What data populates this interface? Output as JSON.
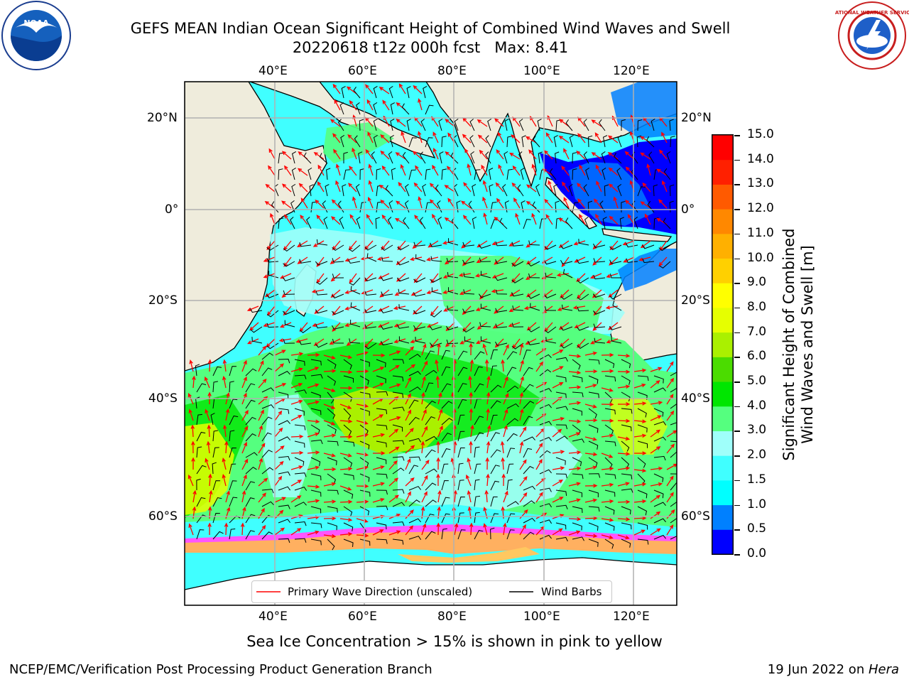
{
  "header": {
    "title_line1": "GEFS MEAN Indian Ocean Significant Height of Combined Wind Waves and Swell",
    "title_line2": "20220618 t12z 000h fcst   Max: 8.41"
  },
  "logos": {
    "left_icon": "noaa-logo",
    "left_text": "NOAA",
    "right_icon": "nws-logo",
    "right_text": "NATIONAL WEATHER SERVICE"
  },
  "map": {
    "lon_labels": [
      "40°E",
      "60°E",
      "80°E",
      "100°E",
      "120°E"
    ],
    "lat_labels": [
      "20°N",
      "0°",
      "20°S",
      "40°S",
      "60°S"
    ],
    "colors": {
      "land": "#efecdc",
      "grid": "#b0b0b0",
      "wave_arrow": "#ff0000",
      "wind_barb": "#000000"
    }
  },
  "colorbar": {
    "label_line1": "Significant Height of Combined",
    "label_line2": "Wind Waves and Swell [m]",
    "ticks": [
      "0.0",
      "0.5",
      "1.0",
      "1.5",
      "2.0",
      "3.0",
      "4.0",
      "5.0",
      "6.0",
      "7.0",
      "8.0",
      "9.0",
      "10.0",
      "11.0",
      "12.0",
      "13.0",
      "14.0",
      "15.0"
    ],
    "colors": [
      "#0000ff",
      "#0080ff",
      "#00ffff",
      "#40ffff",
      "#9ffffa",
      "#55ff7f",
      "#00e600",
      "#4bdc00",
      "#aaf000",
      "#e6ff00",
      "#ffff00",
      "#ffd000",
      "#ffb000",
      "#ff8800",
      "#ff5a00",
      "#ff2000",
      "#ff0000"
    ]
  },
  "legend": {
    "wave_label": "Primary Wave Direction (unscaled)",
    "wind_label": "Wind Barbs"
  },
  "footer": {
    "ice_note": "Sea Ice Concentration > 15% is shown in pink to yellow",
    "credit": "NCEP/EMC/Verification Post Processing Product Generation Branch",
    "date_prefix": "19 Jun 2022 on ",
    "date_machine": "Hera"
  }
}
